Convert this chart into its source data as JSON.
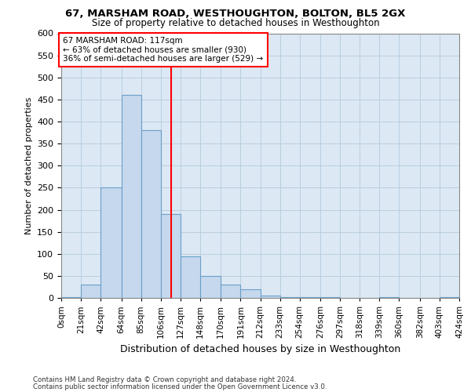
{
  "title": "67, MARSHAM ROAD, WESTHOUGHTON, BOLTON, BL5 2GX",
  "subtitle": "Size of property relative to detached houses in Westhoughton",
  "xlabel": "Distribution of detached houses by size in Westhoughton",
  "ylabel": "Number of detached properties",
  "bar_color": "#c5d8ee",
  "bar_edge_color": "#6a9fc8",
  "grid_color": "#b8cfe0",
  "background_color": "#dce8f4",
  "property_line_x": 117,
  "property_label": "67 MARSHAM ROAD: 117sqm",
  "annotation_line1": "← 63% of detached houses are smaller (930)",
  "annotation_line2": "36% of semi-detached houses are larger (529) →",
  "footer1": "Contains HM Land Registry data © Crown copyright and database right 2024.",
  "footer2": "Contains public sector information licensed under the Open Government Licence v3.0.",
  "bin_labels": [
    "0sqm",
    "21sqm",
    "42sqm",
    "64sqm",
    "85sqm",
    "106sqm",
    "127sqm",
    "148sqm",
    "170sqm",
    "191sqm",
    "212sqm",
    "233sqm",
    "254sqm",
    "276sqm",
    "297sqm",
    "318sqm",
    "339sqm",
    "360sqm",
    "382sqm",
    "403sqm",
    "424sqm"
  ],
  "bin_edges": [
    0,
    21,
    42,
    64,
    85,
    106,
    127,
    148,
    170,
    191,
    212,
    233,
    254,
    276,
    297,
    318,
    339,
    360,
    382,
    403,
    424
  ],
  "bar_heights": [
    1,
    30,
    250,
    460,
    380,
    190,
    95,
    50,
    30,
    20,
    5,
    2,
    1,
    1,
    0,
    0,
    1,
    0,
    0,
    1
  ],
  "ylim": [
    0,
    600
  ],
  "yticks": [
    0,
    50,
    100,
    150,
    200,
    250,
    300,
    350,
    400,
    450,
    500,
    550,
    600
  ]
}
